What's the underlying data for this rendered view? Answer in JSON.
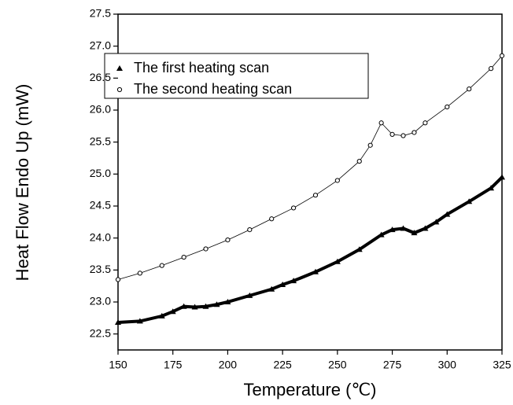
{
  "chart_data": {
    "type": "line",
    "x_label": "Temperature (℃)",
    "y_label": "Heat Flow Endo Up (mW)",
    "xlim": [
      150,
      325
    ],
    "xticks": [
      150,
      175,
      200,
      225,
      250,
      275,
      300,
      325
    ],
    "ylim": [
      22.25,
      27.5
    ],
    "yticks": [
      22.5,
      {
        "value": 23,
        "label": "23.0"
      },
      23.5,
      {
        "value": 24,
        "label": "24.0"
      },
      24.5,
      {
        "value": 25,
        "label": "25.0"
      },
      25.5,
      {
        "value": 26,
        "label": "26.0"
      },
      26.5,
      {
        "value": 27,
        "label": "27.0"
      },
      27.5
    ],
    "legend": "upper left",
    "series": [
      {
        "name": "The first heating scan",
        "color": "#000000",
        "marker": "triangle",
        "x": [
          150,
          160,
          170,
          175,
          180,
          185,
          190,
          195,
          200,
          210,
          220,
          225,
          230,
          240,
          250,
          260,
          270,
          275,
          280,
          285,
          290,
          295,
          300,
          310,
          320,
          325
        ],
        "values": [
          22.68,
          22.7,
          22.78,
          22.85,
          22.93,
          22.92,
          22.93,
          22.96,
          23.0,
          23.1,
          23.2,
          23.27,
          23.33,
          23.47,
          23.63,
          23.82,
          24.05,
          24.13,
          24.15,
          24.08,
          24.15,
          24.25,
          24.37,
          24.57,
          24.78,
          24.95
        ]
      },
      {
        "name": "The second heating scan",
        "color": "#000000",
        "marker": "circle",
        "x": [
          150,
          160,
          170,
          180,
          190,
          200,
          210,
          220,
          230,
          240,
          250,
          260,
          265,
          270,
          275,
          280,
          285,
          290,
          300,
          310,
          320,
          325
        ],
        "values": [
          23.35,
          23.45,
          23.57,
          23.7,
          23.83,
          23.97,
          24.13,
          24.3,
          24.47,
          24.67,
          24.9,
          25.2,
          25.45,
          25.8,
          25.62,
          25.6,
          25.65,
          25.8,
          26.05,
          26.33,
          26.65,
          26.85
        ]
      }
    ]
  }
}
